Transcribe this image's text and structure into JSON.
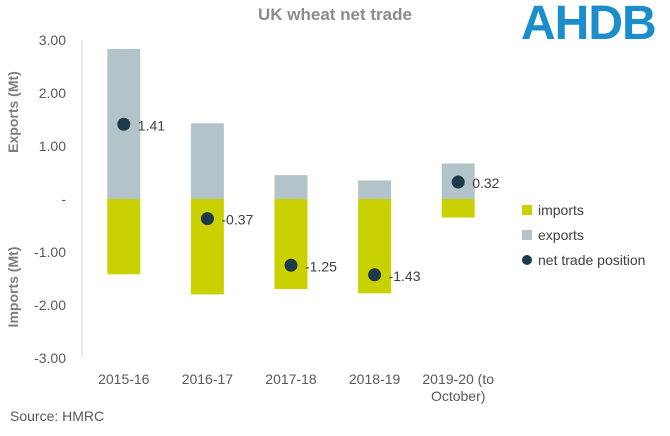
{
  "title": "UK wheat net trade",
  "logo_text": "AHDB",
  "source": "Source: HMRC",
  "ylabel_top": "Exports (Mt)",
  "ylabel_bottom": "Imports (Mt)",
  "colors": {
    "imports": "#c9d200",
    "exports": "#b3c3ca",
    "net": "#1b3a4b",
    "logo": "#1c8dcc"
  },
  "chart_data": {
    "type": "bar",
    "title": "UK wheat net trade",
    "ylim": [
      -3,
      3
    ],
    "y_ticks": [
      "3.00",
      "2.00",
      "1.00",
      "-",
      "-1.00",
      "-2.00",
      "-3.00"
    ],
    "y_tick_values": [
      3,
      2,
      1,
      0,
      -1,
      -2,
      -3
    ],
    "categories": [
      [
        "2015-16"
      ],
      [
        "2016-17"
      ],
      [
        "2017-18"
      ],
      [
        "2018-19"
      ],
      [
        "2019-20 (to",
        "October)"
      ]
    ],
    "series": [
      {
        "name": "imports",
        "type": "bar",
        "values": [
          -1.42,
          -1.8,
          -1.7,
          -1.78,
          -0.35
        ]
      },
      {
        "name": "exports",
        "type": "bar",
        "values": [
          2.83,
          1.43,
          0.45,
          0.35,
          0.67
        ]
      },
      {
        "name": "net trade position",
        "type": "scatter",
        "values": [
          1.41,
          -0.37,
          -1.25,
          -1.43,
          0.32
        ],
        "labels": [
          "1.41",
          "-0.37",
          "-1.25",
          "-1.43",
          "0.32"
        ]
      }
    ],
    "legend": {
      "position": "right",
      "entries": [
        "imports",
        "exports",
        "net trade position"
      ]
    },
    "grid": false
  }
}
